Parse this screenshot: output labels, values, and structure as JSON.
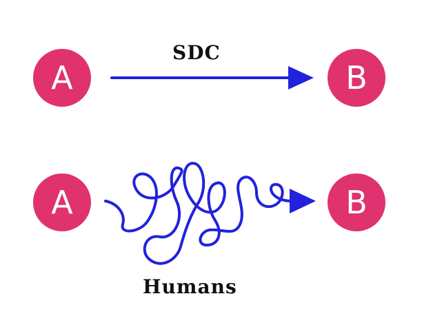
{
  "colors": {
    "node_fill": "#e0326e",
    "node_text": "#ffffff",
    "path": "#2222dd",
    "label_text": "#111111"
  },
  "route_direct": {
    "start_label": "A",
    "end_label": "B",
    "caption": "SDC"
  },
  "route_winding": {
    "start_label": "A",
    "end_label": "B",
    "caption": "Humans"
  }
}
